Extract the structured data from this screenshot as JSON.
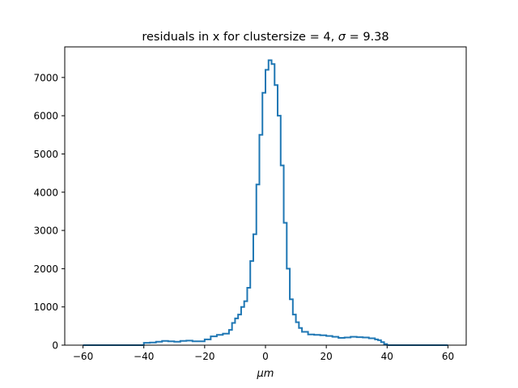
{
  "chart_data": {
    "type": "line",
    "style": "step histogram",
    "title_prefix": "residuals in x for clustersize = 4, ",
    "title_symbol": "σ",
    "title_suffix": " = 9.38",
    "xlabel_symbol": "μ",
    "xlabel_suffix": "m",
    "ylabel": "",
    "xlim": [
      -66,
      66
    ],
    "ylim": [
      0,
      7800
    ],
    "grid": false,
    "legend": "none",
    "line_color": "#1f77b4",
    "x_ticks": [
      {
        "value": -60,
        "label": "−60"
      },
      {
        "value": -40,
        "label": "−40"
      },
      {
        "value": -20,
        "label": "−20"
      },
      {
        "value": 0,
        "label": "0"
      },
      {
        "value": 20,
        "label": "20"
      },
      {
        "value": 40,
        "label": "40"
      },
      {
        "value": 60,
        "label": "60"
      }
    ],
    "y_ticks": [
      {
        "value": 0,
        "label": "0"
      },
      {
        "value": 1000,
        "label": "1000"
      },
      {
        "value": 2000,
        "label": "2000"
      },
      {
        "value": 3000,
        "label": "3000"
      },
      {
        "value": 4000,
        "label": "4000"
      },
      {
        "value": 5000,
        "label": "5000"
      },
      {
        "value": 6000,
        "label": "6000"
      },
      {
        "value": 7000,
        "label": "7000"
      }
    ],
    "series": [
      {
        "x": [
          -60,
          -41,
          -40,
          -38,
          -36,
          -34,
          -32,
          -30,
          -28,
          -26,
          -24,
          -22,
          -20,
          -18,
          -16,
          -14,
          -12,
          -11,
          -10,
          -9,
          -8,
          -7,
          -6,
          -5,
          -4,
          -3,
          -2,
          -1,
          0,
          1,
          2,
          3,
          4,
          5,
          6,
          7,
          8,
          9,
          10,
          11,
          12,
          14,
          16,
          18,
          20,
          22,
          24,
          26,
          28,
          30,
          32,
          34,
          36,
          37,
          38,
          39,
          40,
          60
        ],
        "y": [
          0,
          0,
          60,
          70,
          90,
          110,
          100,
          90,
          110,
          120,
          100,
          100,
          150,
          230,
          270,
          300,
          400,
          580,
          700,
          800,
          1000,
          1150,
          1500,
          2200,
          2900,
          4200,
          5500,
          6600,
          7200,
          7450,
          7350,
          6800,
          6000,
          4700,
          3200,
          2000,
          1200,
          800,
          600,
          450,
          350,
          280,
          270,
          260,
          240,
          220,
          190,
          200,
          220,
          210,
          200,
          180,
          150,
          130,
          80,
          30,
          0,
          0
        ]
      }
    ]
  }
}
